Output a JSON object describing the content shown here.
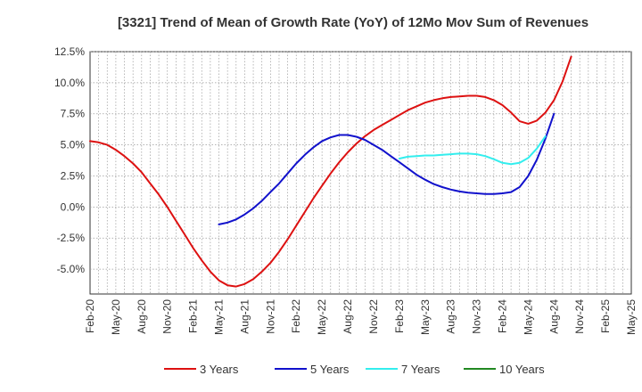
{
  "chart_data": {
    "type": "line",
    "title": "[3321]  Trend of Mean of Growth Rate (YoY) of 12Mo Mov Sum of Revenues",
    "xlabel": "",
    "ylabel": "",
    "ylim": [
      -7.0,
      12.5
    ],
    "ytick_values": [
      12.5,
      10.0,
      7.5,
      5.0,
      2.5,
      0.0,
      -2.5,
      -5.0
    ],
    "ytick_labels": [
      "12.5%",
      "10.0%",
      "7.5%",
      "5.0%",
      "2.5%",
      "0.0%",
      "-2.5%",
      "-5.0%"
    ],
    "xlim": [
      0,
      63
    ],
    "xtick_labels": [
      "Feb-20",
      "May-20",
      "Aug-20",
      "Nov-20",
      "Feb-21",
      "May-21",
      "Aug-21",
      "Nov-21",
      "Feb-22",
      "May-22",
      "Aug-22",
      "Nov-22",
      "Feb-23",
      "May-23",
      "Aug-23",
      "Nov-23",
      "Feb-24",
      "May-24",
      "Aug-24",
      "Nov-24",
      "Feb-25",
      "May-25"
    ],
    "xtick_step_months": 3,
    "grid": true,
    "legend_position": "bottom",
    "series": [
      {
        "name": "3 Years",
        "color": "#dd1111",
        "points": [
          [
            0,
            5.3
          ],
          [
            1,
            5.2
          ],
          [
            2,
            5.0
          ],
          [
            3,
            4.6
          ],
          [
            4,
            4.1
          ],
          [
            5,
            3.5
          ],
          [
            6,
            2.8
          ],
          [
            7,
            1.9
          ],
          [
            8,
            1.0
          ],
          [
            9,
            0.0
          ],
          [
            10,
            -1.1
          ],
          [
            11,
            -2.2
          ],
          [
            12,
            -3.3
          ],
          [
            13,
            -4.3
          ],
          [
            14,
            -5.2
          ],
          [
            15,
            -5.9
          ],
          [
            16,
            -6.3
          ],
          [
            17,
            -6.4
          ],
          [
            18,
            -6.2
          ],
          [
            19,
            -5.8
          ],
          [
            20,
            -5.2
          ],
          [
            21,
            -4.5
          ],
          [
            22,
            -3.6
          ],
          [
            23,
            -2.6
          ],
          [
            24,
            -1.5
          ],
          [
            25,
            -0.4
          ],
          [
            26,
            0.7
          ],
          [
            27,
            1.7
          ],
          [
            28,
            2.7
          ],
          [
            29,
            3.6
          ],
          [
            30,
            4.4
          ],
          [
            31,
            5.1
          ],
          [
            32,
            5.7
          ],
          [
            33,
            6.2
          ],
          [
            34,
            6.6
          ],
          [
            35,
            7.0
          ],
          [
            36,
            7.4
          ],
          [
            37,
            7.8
          ],
          [
            38,
            8.1
          ],
          [
            39,
            8.4
          ],
          [
            40,
            8.6
          ],
          [
            41,
            8.75
          ],
          [
            42,
            8.85
          ],
          [
            43,
            8.9
          ],
          [
            44,
            8.95
          ],
          [
            45,
            8.95
          ],
          [
            46,
            8.85
          ],
          [
            47,
            8.6
          ],
          [
            48,
            8.2
          ],
          [
            49,
            7.6
          ],
          [
            50,
            6.9
          ],
          [
            51,
            6.7
          ],
          [
            52,
            6.95
          ],
          [
            53,
            7.6
          ],
          [
            54,
            8.6
          ],
          [
            55,
            10.1
          ],
          [
            56,
            12.1
          ]
        ]
      },
      {
        "name": "5 Years",
        "color": "#1111cc",
        "points": [
          [
            15,
            -1.4
          ],
          [
            16,
            -1.25
          ],
          [
            17,
            -1.0
          ],
          [
            18,
            -0.6
          ],
          [
            19,
            -0.1
          ],
          [
            20,
            0.5
          ],
          [
            21,
            1.2
          ],
          [
            22,
            1.9
          ],
          [
            23,
            2.7
          ],
          [
            24,
            3.5
          ],
          [
            25,
            4.2
          ],
          [
            26,
            4.8
          ],
          [
            27,
            5.3
          ],
          [
            28,
            5.6
          ],
          [
            29,
            5.8
          ],
          [
            30,
            5.8
          ],
          [
            31,
            5.65
          ],
          [
            32,
            5.4
          ],
          [
            33,
            5.0
          ],
          [
            34,
            4.6
          ],
          [
            35,
            4.1
          ],
          [
            36,
            3.6
          ],
          [
            37,
            3.1
          ],
          [
            38,
            2.6
          ],
          [
            39,
            2.2
          ],
          [
            40,
            1.85
          ],
          [
            41,
            1.6
          ],
          [
            42,
            1.4
          ],
          [
            43,
            1.25
          ],
          [
            44,
            1.15
          ],
          [
            45,
            1.1
          ],
          [
            46,
            1.05
          ],
          [
            47,
            1.05
          ],
          [
            48,
            1.1
          ],
          [
            49,
            1.2
          ],
          [
            50,
            1.6
          ],
          [
            51,
            2.5
          ],
          [
            52,
            3.8
          ],
          [
            53,
            5.5
          ],
          [
            54,
            7.5
          ]
        ]
      },
      {
        "name": "7 Years",
        "color": "#33eeee",
        "points": [
          [
            36,
            3.9
          ],
          [
            37,
            4.05
          ],
          [
            38,
            4.1
          ],
          [
            39,
            4.15
          ],
          [
            40,
            4.15
          ],
          [
            41,
            4.2
          ],
          [
            42,
            4.25
          ],
          [
            43,
            4.3
          ],
          [
            44,
            4.3
          ],
          [
            45,
            4.25
          ],
          [
            46,
            4.1
          ],
          [
            47,
            3.85
          ],
          [
            48,
            3.55
          ],
          [
            49,
            3.45
          ],
          [
            50,
            3.55
          ],
          [
            51,
            3.95
          ],
          [
            52,
            4.7
          ],
          [
            53,
            5.7
          ]
        ]
      },
      {
        "name": "10 Years",
        "color": "#228822",
        "points": []
      }
    ]
  }
}
